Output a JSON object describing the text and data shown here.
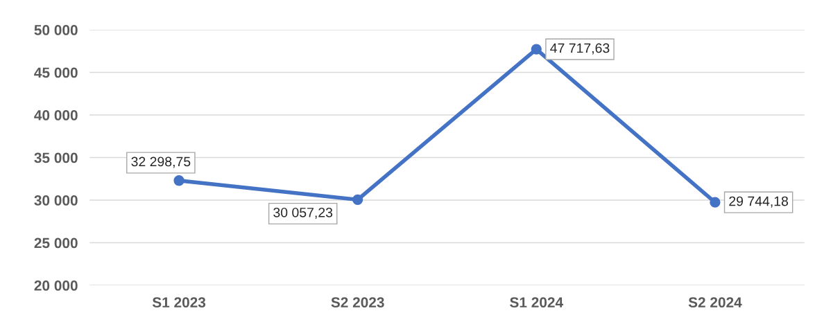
{
  "chart_data": {
    "type": "line",
    "categories": [
      "S1 2023",
      "S2 2023",
      "S1 2024",
      "S2 2024"
    ],
    "series": [
      {
        "color": "#4472c4",
        "values": [
          32298.75,
          30057.23,
          47717.63,
          29744.18
        ],
        "value_labels": [
          "32 298,75",
          "30 057,23",
          "47 717,63",
          "29 744,18"
        ]
      }
    ],
    "ylim": [
      20000,
      50000
    ],
    "yticks": [
      {
        "value": 20000,
        "label": "20 000"
      },
      {
        "value": 25000,
        "label": "25 000"
      },
      {
        "value": 30000,
        "label": "30 000"
      },
      {
        "value": 35000,
        "label": "35 000"
      },
      {
        "value": 40000,
        "label": "40 000"
      },
      {
        "value": 45000,
        "label": "45 000"
      },
      {
        "value": 50000,
        "label": "50 000"
      }
    ],
    "grid": "y",
    "marker": "circle",
    "line_style": "solid"
  }
}
